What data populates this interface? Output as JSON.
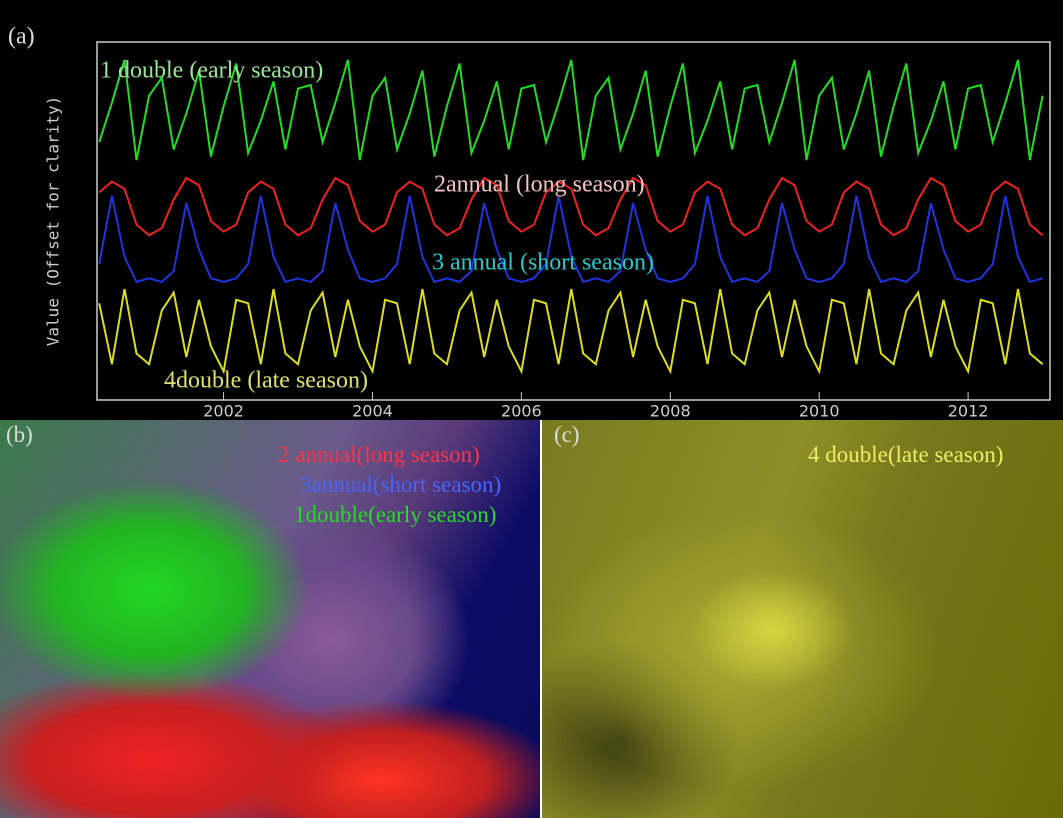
{
  "chart_data": {
    "type": "line",
    "panel_label": "(a)",
    "ylabel": "Value (Offset for clarity)",
    "x": [
      2000.33,
      2000.5,
      2000.67,
      2000.83,
      2001,
      2001.17,
      2001.33,
      2001.5,
      2001.67,
      2001.83,
      2002,
      2002.17,
      2002.33,
      2002.5,
      2002.67,
      2002.83,
      2003,
      2003.17,
      2003.33,
      2003.5,
      2003.67,
      2003.83,
      2004,
      2004.17,
      2004.33,
      2004.5,
      2004.67,
      2004.83,
      2005,
      2005.17,
      2005.33,
      2005.5,
      2005.67,
      2005.83,
      2006,
      2006.17,
      2006.33,
      2006.5,
      2006.67,
      2006.83,
      2007,
      2007.17,
      2007.33,
      2007.5,
      2007.67,
      2007.83,
      2008,
      2008.17,
      2008.33,
      2008.5,
      2008.67,
      2008.83,
      2009,
      2009.17,
      2009.33,
      2009.5,
      2009.67,
      2009.83,
      2010,
      2010.17,
      2010.33,
      2010.5,
      2010.67,
      2010.83,
      2011,
      2011.17,
      2011.33,
      2011.5,
      2011.67,
      2011.83,
      2012,
      2012.17,
      2012.33,
      2012.5,
      2012.67,
      2012.83,
      2013
    ],
    "series": [
      {
        "color": "#22dd22",
        "values": [
          7.2,
          8.3,
          9.5,
          6.7,
          8.5,
          9.0,
          7.0,
          8.0,
          9.2,
          6.8,
          8.2,
          9.4,
          6.9,
          7.8,
          8.9,
          7.0,
          8.7,
          8.8,
          7.2,
          8.3,
          9.5,
          6.7,
          8.5,
          9.0,
          7.0,
          8.0,
          9.2,
          6.8,
          8.2,
          9.4,
          6.9,
          7.8,
          8.9,
          7.0,
          8.7,
          8.8,
          7.2,
          8.3,
          9.5,
          6.7,
          8.5,
          9.0,
          7.0,
          8.0,
          9.2,
          6.8,
          8.2,
          9.4,
          6.9,
          7.8,
          8.9,
          7.0,
          8.7,
          8.8,
          7.2,
          8.3,
          9.5,
          6.7,
          8.5,
          9.0,
          7.0,
          8.0,
          9.2,
          6.8,
          8.2,
          9.4,
          6.9,
          7.8,
          8.9,
          7.0,
          8.7,
          8.8,
          7.2,
          8.3,
          9.5,
          6.7,
          8.5
        ]
      },
      {
        "color": "#ee2222",
        "values": [
          5.8,
          6.1,
          5.9,
          4.9,
          4.6,
          4.8,
          5.6,
          6.2,
          6.0,
          5.0,
          4.7,
          4.9,
          5.8,
          6.1,
          5.9,
          4.9,
          4.6,
          4.8,
          5.6,
          6.2,
          6.0,
          5.0,
          4.7,
          4.9,
          5.8,
          6.1,
          5.9,
          4.9,
          4.6,
          4.8,
          5.6,
          6.2,
          6.0,
          5.0,
          4.7,
          4.9,
          5.8,
          6.1,
          5.9,
          4.9,
          4.6,
          4.8,
          5.6,
          6.2,
          6.0,
          5.0,
          4.7,
          4.9,
          5.8,
          6.1,
          5.9,
          4.9,
          4.6,
          4.8,
          5.6,
          6.2,
          6.0,
          5.0,
          4.7,
          4.9,
          5.8,
          6.1,
          5.9,
          4.9,
          4.6,
          4.8,
          5.6,
          6.2,
          6.0,
          5.0,
          4.7,
          4.9,
          5.8,
          6.1,
          5.9,
          4.9,
          4.6
        ]
      },
      {
        "color": "#2233dd",
        "values": [
          3.8,
          5.7,
          4.0,
          3.3,
          3.4,
          3.3,
          3.6,
          5.5,
          4.2,
          3.4,
          3.3,
          3.4,
          3.8,
          5.7,
          4.0,
          3.3,
          3.4,
          3.3,
          3.6,
          5.5,
          4.2,
          3.4,
          3.3,
          3.4,
          3.8,
          5.7,
          4.0,
          3.3,
          3.4,
          3.3,
          3.6,
          5.5,
          4.2,
          3.4,
          3.3,
          3.4,
          3.8,
          5.7,
          4.0,
          3.3,
          3.4,
          3.3,
          3.6,
          5.5,
          4.2,
          3.4,
          3.3,
          3.4,
          3.8,
          5.7,
          4.0,
          3.3,
          3.4,
          3.3,
          3.6,
          5.5,
          4.2,
          3.4,
          3.3,
          3.4,
          3.8,
          5.7,
          4.0,
          3.3,
          3.4,
          3.3,
          3.6,
          5.5,
          4.2,
          3.4,
          3.3,
          3.4,
          3.8,
          5.7,
          4.0,
          3.3,
          3.4
        ]
      },
      {
        "color": "#dddd22",
        "values": [
          2.7,
          1.0,
          3.1,
          1.3,
          1.0,
          2.5,
          3.0,
          1.2,
          2.8,
          1.5,
          0.8,
          2.8,
          2.7,
          1.0,
          3.1,
          1.3,
          1.0,
          2.5,
          3.0,
          1.2,
          2.8,
          1.5,
          0.8,
          2.8,
          2.7,
          1.0,
          3.1,
          1.3,
          1.0,
          2.5,
          3.0,
          1.2,
          2.8,
          1.5,
          0.8,
          2.8,
          2.7,
          1.0,
          3.1,
          1.3,
          1.0,
          2.5,
          3.0,
          1.2,
          2.8,
          1.5,
          0.8,
          2.8,
          2.7,
          1.0,
          3.1,
          1.3,
          1.0,
          2.5,
          3.0,
          1.2,
          2.8,
          1.5,
          0.8,
          2.8,
          2.7,
          1.0,
          3.1,
          1.3,
          1.0,
          2.5,
          3.0,
          1.2,
          2.8,
          1.5,
          0.8,
          2.8,
          2.7,
          1.0,
          3.1,
          1.3,
          1.0
        ]
      }
    ],
    "xlim": [
      2000.3,
      2013.1
    ],
    "xticks": [
      2002,
      2004,
      2006,
      2008,
      2010,
      2012
    ],
    "ylim": [
      0,
      10
    ],
    "annotations": [
      {
        "text": "1 double (early season)",
        "color": "#99e699"
      },
      {
        "text": "2annual (long season)",
        "color": "#f2c4c4"
      },
      {
        "text": "3 annual (short season)",
        "color": "#22cccc"
      },
      {
        "text": "4double (late season)",
        "color": "#e0e070"
      }
    ]
  },
  "panels": {
    "b": {
      "label": "(b)",
      "legend": [
        {
          "text": "2 annual(long season)",
          "color": "#ff3344"
        },
        {
          "text": "3annual(short season)",
          "color": "#4466ff"
        },
        {
          "text": "1double(early season)",
          "color": "#22dd22"
        }
      ]
    },
    "c": {
      "label": "(c)",
      "legend": [
        {
          "text": "4 double(late season)",
          "color": "#eeee66"
        }
      ]
    }
  }
}
